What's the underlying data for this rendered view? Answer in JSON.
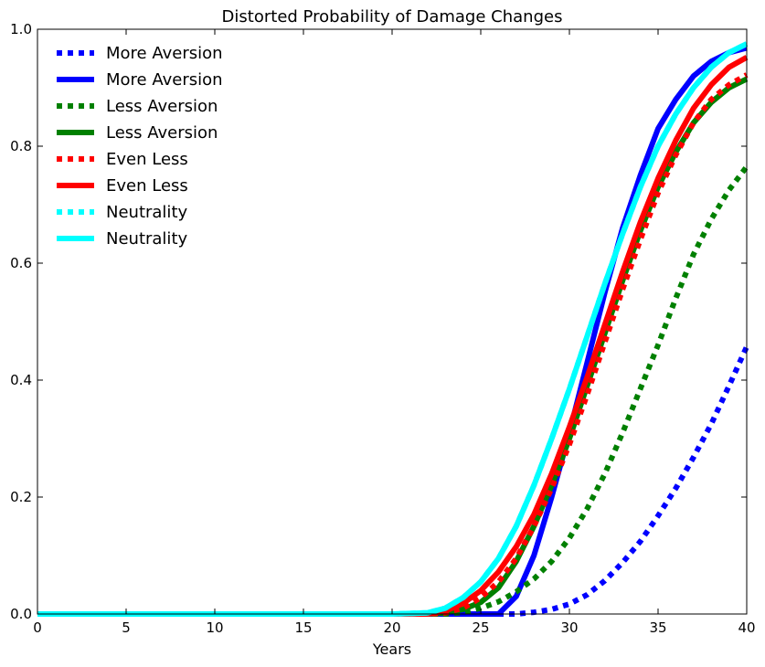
{
  "chart_data": {
    "type": "line",
    "title": "Distorted Probability of Damage Changes",
    "xlabel": "Years",
    "ylabel": "",
    "xlim": [
      0,
      40
    ],
    "ylim": [
      0,
      1
    ],
    "xticks": [
      "0",
      "5",
      "10",
      "15",
      "20",
      "25",
      "30",
      "35",
      "40"
    ],
    "yticks": [
      "0.0",
      "0.2",
      "0.4",
      "0.6",
      "0.8",
      "1.0"
    ],
    "grid": false,
    "legend_position": "top-left",
    "x": [
      0,
      20,
      22,
      23,
      24,
      25,
      26,
      27,
      28,
      29,
      30,
      31,
      32,
      33,
      34,
      35,
      36,
      37,
      38,
      39,
      40
    ],
    "series": [
      {
        "name": "More Aversion",
        "style": "dotted",
        "color": "#0000ff",
        "values": [
          0,
          0,
          0,
          0,
          0,
          0,
          0,
          0,
          0.003,
          0.008,
          0.017,
          0.033,
          0.057,
          0.088,
          0.124,
          0.168,
          0.215,
          0.268,
          0.325,
          0.39,
          0.457
        ]
      },
      {
        "name": "More Aversion",
        "style": "solid",
        "color": "#0000ff",
        "values": [
          0,
          0,
          0,
          0,
          0,
          0,
          0,
          0.03,
          0.1,
          0.2,
          0.31,
          0.43,
          0.55,
          0.66,
          0.75,
          0.83,
          0.88,
          0.92,
          0.945,
          0.96,
          0.968
        ]
      },
      {
        "name": "Less Aversion",
        "style": "dotted",
        "color": "#008000",
        "values": [
          0,
          0,
          0,
          0,
          0.003,
          0.01,
          0.021,
          0.038,
          0.06,
          0.09,
          0.13,
          0.18,
          0.24,
          0.31,
          0.385,
          0.46,
          0.54,
          0.615,
          0.675,
          0.725,
          0.765
        ]
      },
      {
        "name": "Less Aversion",
        "style": "solid",
        "color": "#008000",
        "values": [
          0,
          0,
          0,
          0.002,
          0.008,
          0.02,
          0.045,
          0.09,
          0.15,
          0.22,
          0.3,
          0.39,
          0.48,
          0.57,
          0.655,
          0.73,
          0.79,
          0.84,
          0.875,
          0.9,
          0.915
        ]
      },
      {
        "name": "Even Less",
        "style": "dotted",
        "color": "#ff0000",
        "values": [
          0,
          0,
          0,
          0.002,
          0.01,
          0.028,
          0.055,
          0.095,
          0.15,
          0.215,
          0.29,
          0.375,
          0.465,
          0.555,
          0.64,
          0.72,
          0.785,
          0.84,
          0.88,
          0.905,
          0.922
        ]
      },
      {
        "name": "Even Less",
        "style": "solid",
        "color": "#ff0000",
        "values": [
          0,
          0,
          0,
          0.005,
          0.018,
          0.04,
          0.072,
          0.115,
          0.17,
          0.24,
          0.32,
          0.405,
          0.495,
          0.585,
          0.67,
          0.745,
          0.81,
          0.865,
          0.905,
          0.935,
          0.952
        ]
      },
      {
        "name": "Neutrality",
        "style": "dotted",
        "color": "#00ffff",
        "values": [
          0,
          0,
          0.002,
          0.01,
          0.028,
          0.055,
          0.095,
          0.15,
          0.22,
          0.3,
          0.385,
          0.475,
          0.565,
          0.65,
          0.73,
          0.8,
          0.855,
          0.9,
          0.935,
          0.96,
          0.975
        ]
      },
      {
        "name": "Neutrality",
        "style": "solid",
        "color": "#00ffff",
        "values": [
          0,
          0,
          0.002,
          0.01,
          0.028,
          0.055,
          0.095,
          0.15,
          0.22,
          0.3,
          0.385,
          0.475,
          0.565,
          0.65,
          0.73,
          0.8,
          0.855,
          0.9,
          0.935,
          0.96,
          0.975
        ]
      }
    ]
  }
}
